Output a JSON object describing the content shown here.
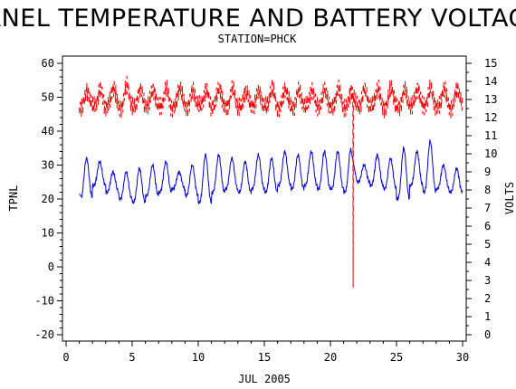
{
  "chart_data": {
    "type": "line",
    "title": "PANEL TEMPERATURE AND BATTERY VOLTAGE",
    "subtitle": "STATION=PHCK",
    "xlabel": "JUL 2005",
    "ylabel": "TPNL",
    "y2label": "VOLTS",
    "xlim": [
      0,
      30
    ],
    "ylim": [
      -20,
      60
    ],
    "y2lim": [
      0,
      15
    ],
    "x_ticks": [
      0,
      5,
      10,
      15,
      20,
      25,
      30
    ],
    "y_ticks": [
      -20,
      -10,
      0,
      10,
      20,
      30,
      40,
      50,
      60
    ],
    "y2_ticks": [
      0,
      1,
      2,
      3,
      4,
      5,
      6,
      7,
      8,
      9,
      10,
      11,
      12,
      13,
      14,
      15
    ],
    "series": [
      {
        "axis": "left",
        "color": "#0000cc",
        "style": "solid",
        "daily_min": [
          20.5,
          24,
          22,
          20,
          19,
          21,
          22,
          23,
          21,
          19,
          22,
          23,
          22,
          23,
          22,
          24,
          23,
          24,
          23,
          23,
          22,
          25,
          24,
          23,
          20,
          24,
          22,
          23,
          22,
          22
        ],
        "daily_max": [
          32,
          31,
          28,
          28,
          29,
          30,
          31,
          28,
          30,
          33,
          33,
          32,
          31,
          33,
          32,
          34,
          33,
          34,
          34,
          34,
          35,
          30,
          33,
          32,
          35,
          34,
          37,
          30,
          29,
          26
        ],
        "x": [
          1.0,
          1.2,
          21.75,
          21.8,
          30.0
        ],
        "y": [
          21.5,
          20.5,
          35.5,
          28.0,
          22.5
        ]
      },
      {
        "axis": "right",
        "color": "#ee0000",
        "style": "dashed",
        "daily_min": [
          12.6,
          12.6,
          12.6,
          12.6,
          12.6,
          12.6,
          12.6,
          12.6,
          12.6,
          12.6,
          12.6,
          12.6,
          12.6,
          12.6,
          12.6,
          12.6,
          12.6,
          12.6,
          12.6,
          12.6,
          12.6,
          12.6,
          12.6,
          12.6,
          12.6,
          12.6,
          12.6,
          12.6,
          12.6,
          12.6
        ],
        "daily_max": [
          13.5,
          13.6,
          13.6,
          13.7,
          13.6,
          13.6,
          13.5,
          13.6,
          13.5,
          13.6,
          13.6,
          13.5,
          13.5,
          13.5,
          13.6,
          13.5,
          13.5,
          13.6,
          13.5,
          13.5,
          13.5,
          13.6,
          13.6,
          13.6,
          13.5,
          13.7,
          13.6,
          13.5,
          13.6,
          13.6
        ],
        "x": [
          21.7,
          21.72,
          21.74
        ],
        "y": [
          12.6,
          2.6,
          13.2
        ]
      }
    ]
  }
}
